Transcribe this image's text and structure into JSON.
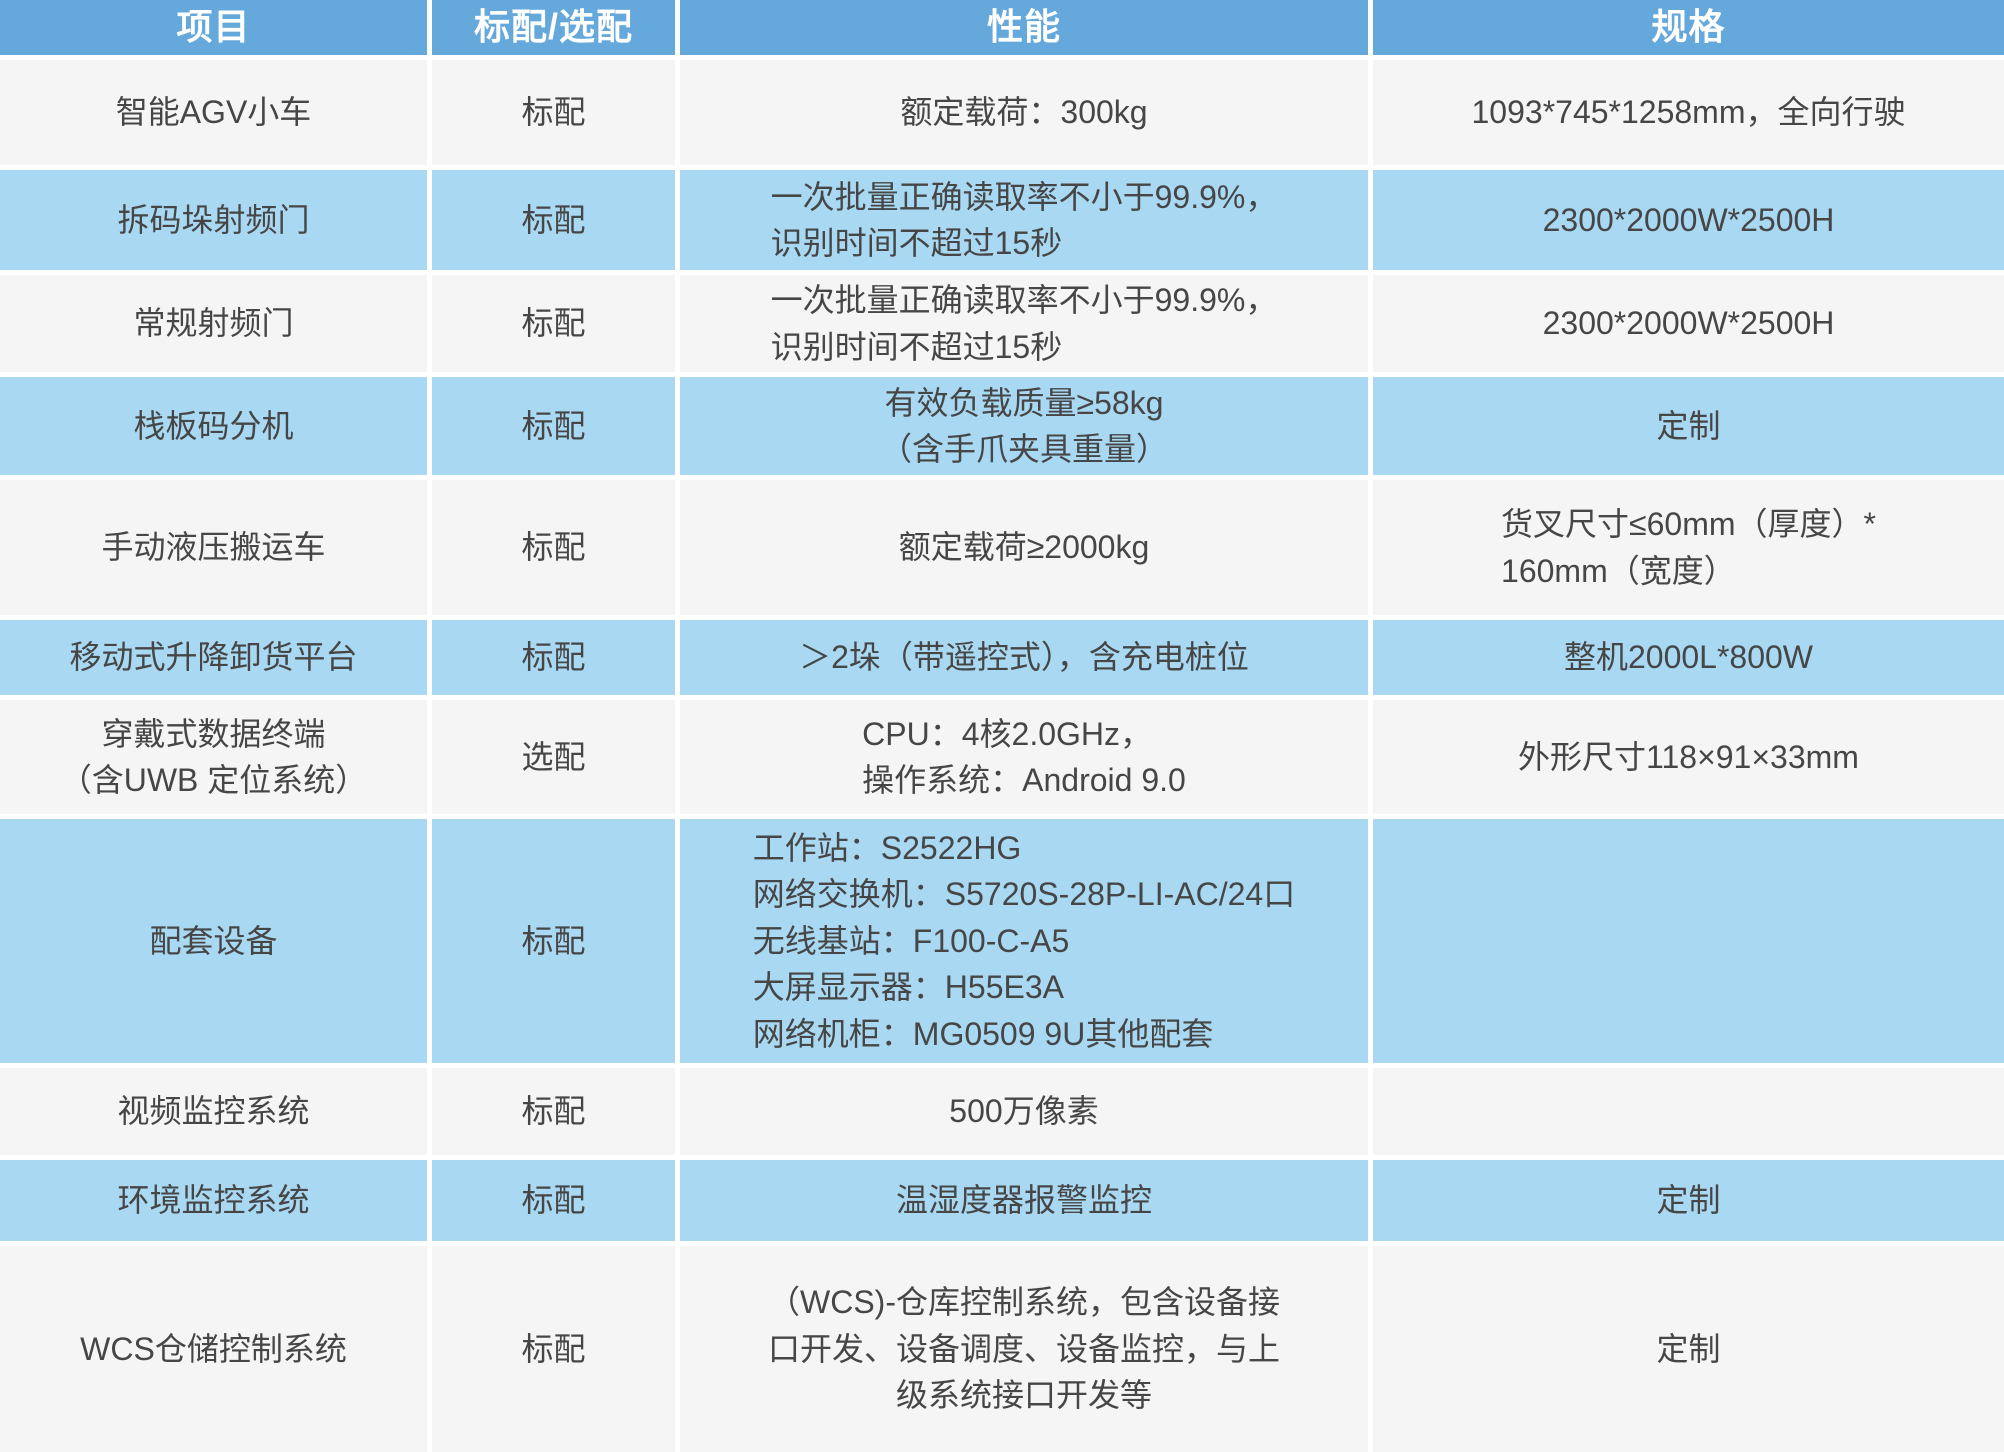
{
  "table": {
    "colors": {
      "header_bg": "#65a8db",
      "header_text": "#ffffff",
      "row_base": "#f5f5f6",
      "row_alt": "#a9d8f2",
      "text": "#464646"
    },
    "header": [
      "项目",
      "标配/选配",
      "性能",
      "规格"
    ],
    "rows": [
      {
        "item": [
          "智能AGV小车"
        ],
        "config": "标配",
        "performance": [
          "额定载荷：300kg"
        ],
        "spec": [
          "1093*745*1258mm，全向行驶"
        ]
      },
      {
        "item": [
          "拆码垛射频门"
        ],
        "config": "标配",
        "performance": [
          "一次批量正确读取率不小于99.9%，",
          "识别时间不超过15秒"
        ],
        "spec": [
          "2300*2000W*2500H"
        ]
      },
      {
        "item": [
          "常规射频门"
        ],
        "config": "标配",
        "performance": [
          "一次批量正确读取率不小于99.9%，",
          "识别时间不超过15秒"
        ],
        "spec": [
          "2300*2000W*2500H"
        ]
      },
      {
        "item": [
          "栈板码分机"
        ],
        "config": "标配",
        "performance": [
          "有效负载质量≥58kg",
          "（含手爪夹具重量）"
        ],
        "spec": [
          "定制"
        ]
      },
      {
        "item": [
          "手动液压搬运车"
        ],
        "config": "标配",
        "performance": [
          "额定载荷≥2000kg"
        ],
        "spec": [
          "货叉尺寸≤60mm（厚度）*",
          "160mm（宽度）"
        ]
      },
      {
        "item": [
          "移动式升降卸货平台"
        ],
        "config": "标配",
        "performance": [
          "＞2垛（带遥控式），含充电桩位"
        ],
        "spec": [
          "整机2000L*800W"
        ]
      },
      {
        "item": [
          "穿戴式数据终端",
          "（含UWB 定位系统）"
        ],
        "config": "选配",
        "performance": [
          "CPU：4核2.0GHz，",
          "操作系统：Android 9.0"
        ],
        "spec": [
          "外形尺寸118×91×33mm"
        ]
      },
      {
        "item": [
          "配套设备"
        ],
        "config": "标配",
        "performance": [
          "工作站：S2522HG",
          "网络交换机：S5720S-28P-LI-AC/24口",
          "无线基站：F100-C-A5",
          "大屏显示器：H55E3A",
          "网络机柜：MG0509 9U其他配套"
        ],
        "spec": []
      },
      {
        "item": [
          "视频监控系统"
        ],
        "config": "标配",
        "performance": [
          "500万像素"
        ],
        "spec": []
      },
      {
        "item": [
          "环境监控系统"
        ],
        "config": "标配",
        "performance": [
          "温湿度器报警监控"
        ],
        "spec": [
          "定制"
        ]
      },
      {
        "item": [
          "WCS仓储控制系统"
        ],
        "config": "标配",
        "performance": [
          "（WCS)-仓库控制系统，包含设备接",
          "口开发、设备调度、设备监控，与上",
          "级系统接口开发等"
        ],
        "spec": [
          "定制"
        ]
      }
    ]
  }
}
